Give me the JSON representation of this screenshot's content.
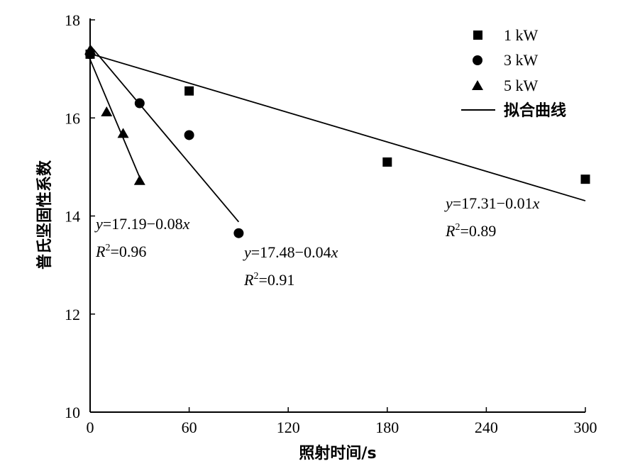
{
  "chart_data": {
    "type": "scatter",
    "title": "",
    "xlabel": "照射时间/s",
    "ylabel": "普氏坚固性系数",
    "xlim": [
      0,
      300
    ],
    "ylim": [
      10,
      18
    ],
    "xticks": [
      0,
      60,
      120,
      180,
      240,
      300
    ],
    "yticks": [
      10,
      12,
      14,
      16,
      18
    ],
    "legend_position": "top-right",
    "series": [
      {
        "name": "1 kW",
        "marker": "square",
        "points": [
          [
            0,
            17.3
          ],
          [
            60,
            16.55
          ],
          [
            180,
            15.1
          ],
          [
            300,
            14.75
          ]
        ],
        "fit": {
          "intercept": 17.31,
          "slope": -0.01,
          "x_range": [
            0,
            300
          ]
        },
        "equation": {
          "prefix": "y",
          "body": "=17.31−0.01",
          "suffix": "x",
          "r2_label": "R",
          "r2_sup": "2",
          "r2_value": "=0.89"
        }
      },
      {
        "name": "3 kW",
        "marker": "circle",
        "points": [
          [
            0,
            17.3
          ],
          [
            30,
            16.3
          ],
          [
            60,
            15.65
          ],
          [
            90,
            13.65
          ]
        ],
        "fit": {
          "intercept": 17.48,
          "slope": -0.04,
          "x_range": [
            0,
            90
          ]
        },
        "equation": {
          "prefix": "y",
          "body": "=17.48−0.04",
          "suffix": "x",
          "r2_label": "R",
          "r2_sup": "2",
          "r2_value": "=0.91"
        }
      },
      {
        "name": "5 kW",
        "marker": "triangle",
        "points": [
          [
            0,
            17.38
          ],
          [
            10,
            16.12
          ],
          [
            20,
            15.68
          ],
          [
            30,
            14.72
          ]
        ],
        "fit": {
          "intercept": 17.19,
          "slope": -0.08,
          "x_range": [
            0,
            30
          ]
        },
        "equation": {
          "prefix": "y",
          "body": "=17.19−0.08",
          "suffix": "x",
          "r2_label": "R",
          "r2_sup": "2",
          "r2_value": "=0.96"
        }
      }
    ],
    "fit_legend_label": "拟合曲线"
  }
}
